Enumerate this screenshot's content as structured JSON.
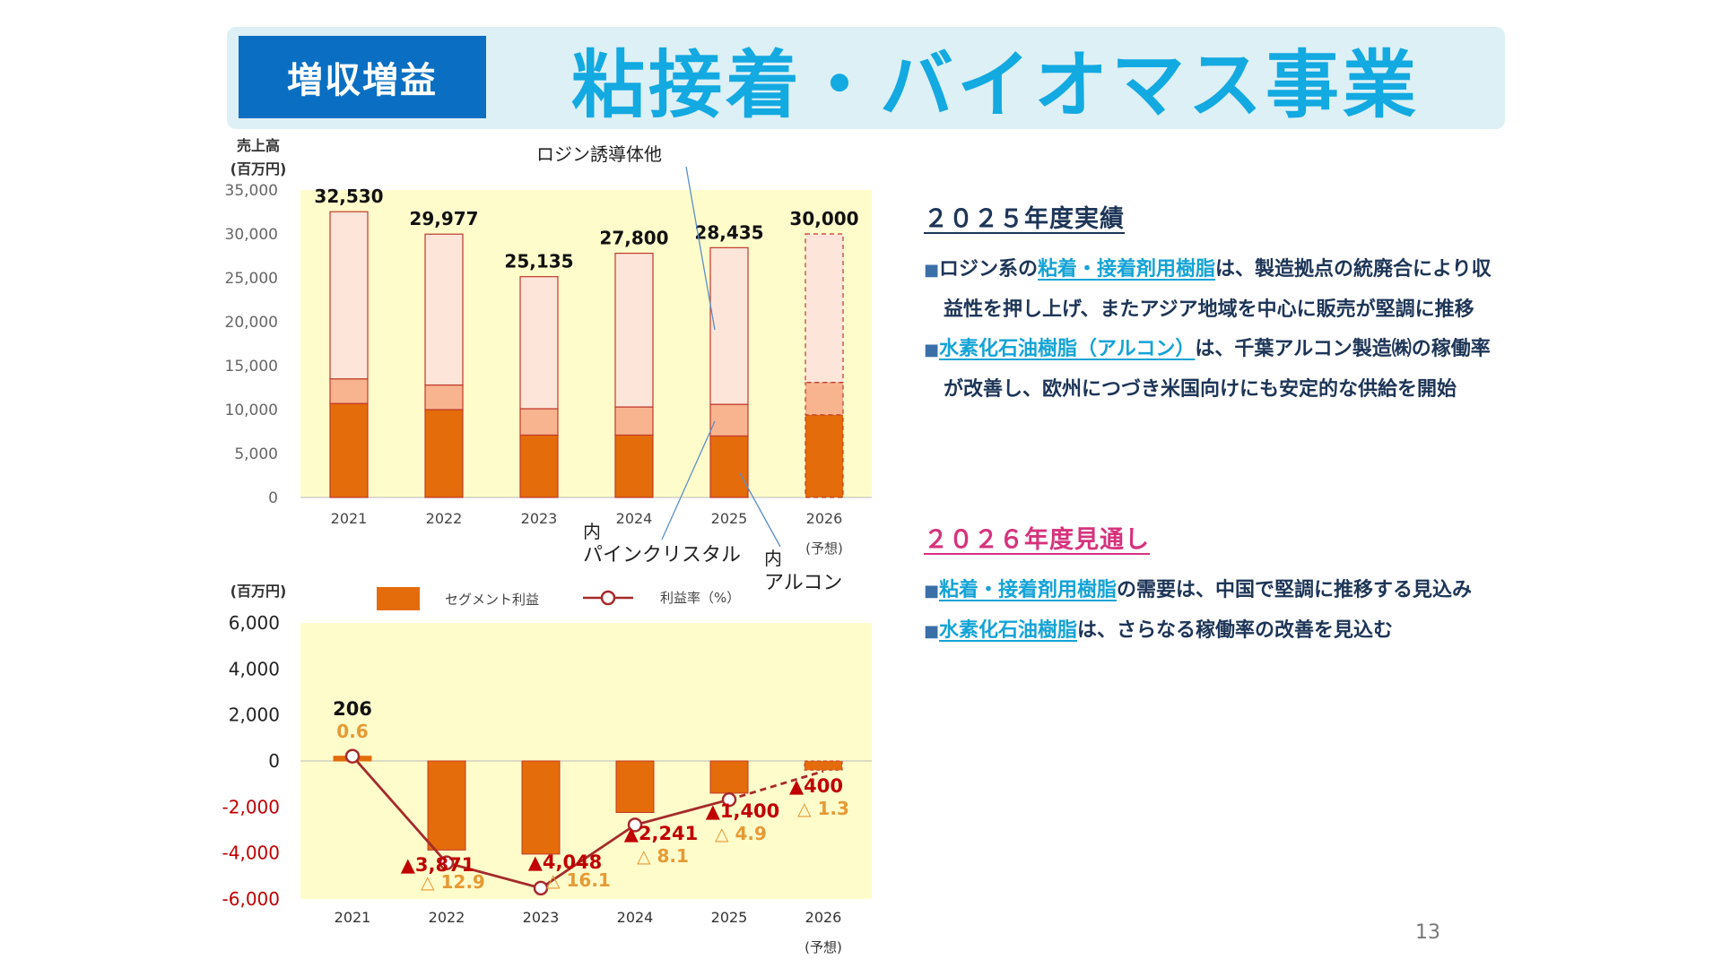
{
  "header": {
    "badge": "増収増益",
    "title": "粘接着・バイオマス事業"
  },
  "colors": {
    "light_segment": "#fde5d9",
    "mid_segment": "#f8b48f",
    "dark_segment": "#e46c0a",
    "outline": "#c0392b",
    "plot_bg": "#fffccc",
    "profit_bar": "#e46c0a",
    "rate_line": "#a52a2a",
    "negative_value": "#c00000",
    "rate_label": "#e69a34"
  },
  "chart_data": [
    {
      "type": "bar",
      "stacked": true,
      "ylabel": "売上高\n(百万円)",
      "categories": [
        "2021",
        "2022",
        "2023",
        "2024",
        "2025",
        "2026"
      ],
      "category_notes": [
        "",
        "",
        "",
        "",
        "",
        "(予想)"
      ],
      "yticks": [
        "35,000",
        "30,000",
        "25,000",
        "20,000",
        "15,000",
        "10,000",
        "5,000",
        "0"
      ],
      "ylim": [
        0,
        35000
      ],
      "totals": [
        32530,
        29977,
        25135,
        27800,
        28435,
        30000
      ],
      "total_labels": [
        "32,530",
        "29,977",
        "25,135",
        "27,800",
        "28,435",
        "30,000"
      ],
      "series": [
        {
          "name": "内\nアルコン",
          "values": [
            10700,
            10000,
            7100,
            7100,
            7000,
            9400
          ]
        },
        {
          "name": "内\nパインクリスタル",
          "values": [
            2800,
            2800,
            3000,
            3200,
            3600,
            3700
          ]
        },
        {
          "name": "ロジン誘導体他",
          "values": [
            19030,
            17177,
            15035,
            17500,
            17835,
            16900
          ]
        }
      ],
      "forecast_index": 5,
      "grid": false
    },
    {
      "type": "bar",
      "ylabel": "(百万円)",
      "categories": [
        "2021",
        "2022",
        "2023",
        "2024",
        "2025",
        "2026"
      ],
      "category_notes": [
        "",
        "",
        "",
        "",
        "",
        "(予想)"
      ],
      "yticks": [
        "6,000",
        "4,000",
        "2,000",
        "0",
        "-2,000",
        "-4,000",
        "-6,000"
      ],
      "ylim": [
        -6000,
        6000
      ],
      "legend": [
        "セグメント利益",
        "利益率（%）"
      ],
      "series": [
        {
          "name": "セグメント利益",
          "values": [
            206,
            -3871,
            -4048,
            -2241,
            -1400,
            -400
          ],
          "labels": [
            "206",
            "▲3,871",
            "▲4,048",
            "▲2,241",
            "▲1,400",
            "▲400"
          ]
        },
        {
          "name": "利益率（%）",
          "type": "line",
          "values": [
            0.6,
            -12.9,
            -16.1,
            -8.1,
            -4.9,
            -1.3
          ],
          "labels": [
            "0.6",
            "△ 12.9",
            "△ 16.1",
            "△ 8.1",
            "△ 4.9",
            "△ 1.3"
          ]
        }
      ],
      "forecast_index": 5,
      "grid": false
    }
  ],
  "results_2025": {
    "heading": "２０２５年度実績",
    "bullet1": {
      "mark": "■",
      "pre": "ロジン系の",
      "hl": "粘着・接着剤用樹脂",
      "post": "は、製造拠点の統廃合により収益性を押し上げ、またアジア地域を中心に販売が堅調に推移"
    },
    "bullet2": {
      "mark": "■",
      "hl": "水素化石油樹脂（アルコン）",
      "post": "は、千葉アルコン製造㈱の稼働率が改善し、欧州につづき米国向けにも安定的な供給を開始"
    }
  },
  "outlook_2026": {
    "heading": "２０２６年度見通し",
    "bullet1": {
      "mark": "■",
      "hl": "粘着・接着剤用樹脂",
      "post": "の需要は、中国で堅調に推移する見込み"
    },
    "bullet2": {
      "mark": "■",
      "hl": "水素化石油樹脂",
      "post": "は、さらなる稼働率の改善を見込む"
    }
  },
  "page_number": "13"
}
